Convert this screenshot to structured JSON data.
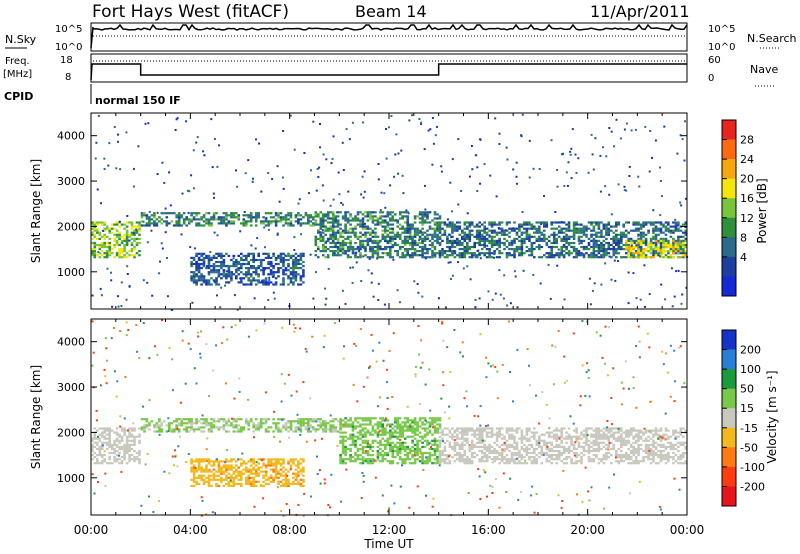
{
  "header": {
    "station": "Fort Hays West (fitACF)",
    "beam": "Beam 14",
    "date": "11/Apr/2011"
  },
  "status_panels": {
    "nsky_label": "N.Sky",
    "nsky_ticks": [
      "10^5",
      "10^0"
    ],
    "nsearch_label": "N.Search",
    "nsearch_ticks": [
      "10^5",
      "10^0"
    ],
    "freq_label": "Freq.",
    "freq_unit": "[MHz]",
    "freq_ticks": [
      "18",
      "8"
    ],
    "nave_label": "Nave",
    "nave_ticks": [
      "60",
      "0"
    ],
    "cpid_label": "CPID",
    "cpid_value": "normal 150 IF"
  },
  "power_colorbar": {
    "label": "Power [dB]",
    "ticks": [
      "28",
      "24",
      "20",
      "16",
      "12",
      "8",
      "4"
    ],
    "colors": [
      "#e8241c",
      "#ff6a10",
      "#f7a60e",
      "#f5e60a",
      "#78c43a",
      "#2f8f3a",
      "#2a6a8a",
      "#1c3fa0",
      "#1428d8"
    ]
  },
  "velocity_colorbar": {
    "label": "Velocity [m s⁻¹]",
    "ticks": [
      "200",
      "100",
      "50",
      "15",
      "-15",
      "-50",
      "-100",
      "-200"
    ],
    "colors": [
      "#1434c8",
      "#2a7fd8",
      "#1a9a3a",
      "#78c84a",
      "#c8c8be",
      "#f2b81c",
      "#ff7a10",
      "#ff3c10",
      "#e8141c"
    ]
  },
  "chart_data": [
    {
      "type": "heatmap",
      "name": "power",
      "ylabel": "Slant Range [km]",
      "xlabel": "Time UT",
      "xlim": [
        "00:00",
        "24:00"
      ],
      "ylim": [
        180,
        4500
      ],
      "y_ticks": [
        "1000",
        "2000",
        "3000",
        "4000"
      ],
      "regions": [
        {
          "t0": 0.0,
          "t1": 2.0,
          "r0": 1300,
          "r1": 2100,
          "level": 16
        },
        {
          "t0": 2.0,
          "t1": 9.0,
          "r0": 2000,
          "r1": 2300,
          "level": 10
        },
        {
          "t0": 9.0,
          "t1": 14.0,
          "r0": 1300,
          "r1": 2300,
          "level": 10
        },
        {
          "t0": 4.0,
          "t1": 8.5,
          "r0": 700,
          "r1": 1400,
          "level": 6
        },
        {
          "t0": 14.0,
          "t1": 24.0,
          "r0": 1300,
          "r1": 2100,
          "level": 8
        },
        {
          "t0": 21.5,
          "t1": 24.0,
          "r0": 1300,
          "r1": 1700,
          "level": 20
        }
      ]
    },
    {
      "type": "heatmap",
      "name": "velocity",
      "ylabel": "Slant Range [km]",
      "xlabel": "Time UT",
      "xlim": [
        "00:00",
        "24:00"
      ],
      "ylim": [
        180,
        4500
      ],
      "y_ticks": [
        "1000",
        "2000",
        "3000",
        "4000"
      ],
      "x_ticks": [
        "00:00",
        "04:00",
        "08:00",
        "12:00",
        "16:00",
        "20:00",
        "00:00"
      ],
      "regions": [
        {
          "t0": 0.0,
          "t1": 2.0,
          "r0": 1300,
          "r1": 2100,
          "velocity": 0
        },
        {
          "t0": 2.0,
          "t1": 10.0,
          "r0": 2000,
          "r1": 2300,
          "velocity": 20
        },
        {
          "t0": 10.0,
          "t1": 14.0,
          "r0": 1300,
          "r1": 2300,
          "velocity": 40
        },
        {
          "t0": 4.0,
          "t1": 8.5,
          "r0": 800,
          "r1": 1400,
          "velocity": -40
        },
        {
          "t0": 14.0,
          "t1": 24.0,
          "r0": 1300,
          "r1": 2100,
          "velocity": 0
        }
      ]
    }
  ]
}
